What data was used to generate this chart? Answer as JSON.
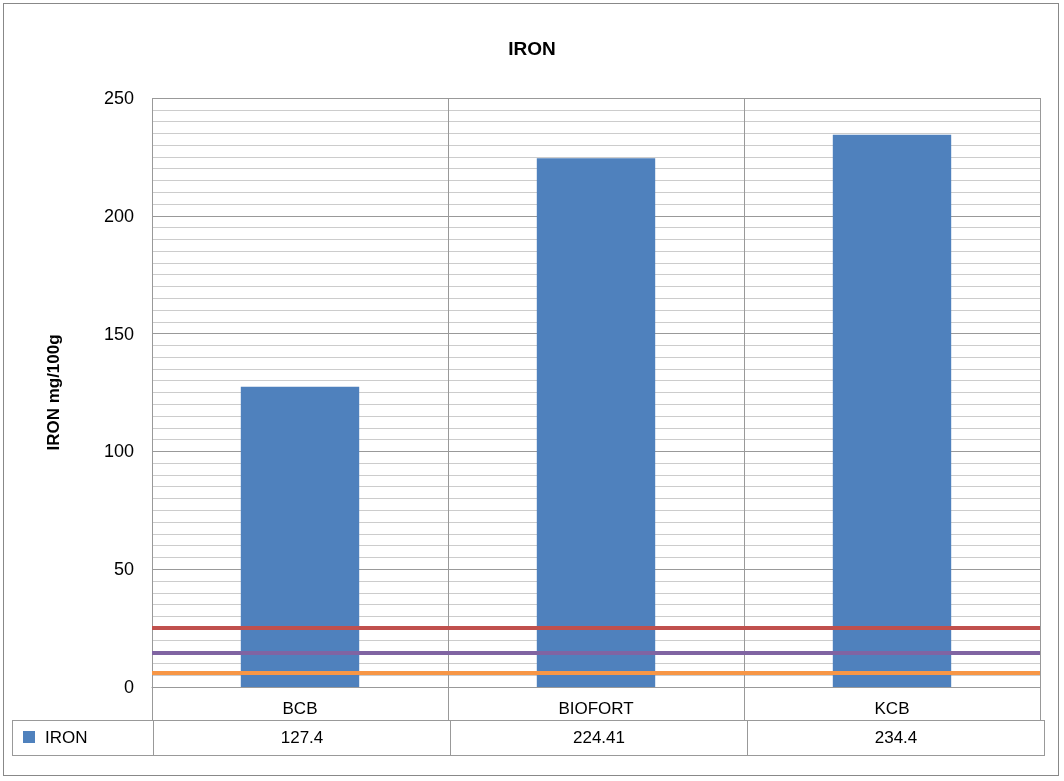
{
  "chart_data": {
    "type": "bar",
    "title": "IRON",
    "ylabel": "IRON mg/100g",
    "categories": [
      "BCB",
      "BIOFORT",
      "KCB"
    ],
    "series": [
      {
        "name": "IRON",
        "color": "#4f81bd",
        "values": [
          127.4,
          224.41,
          234.4
        ]
      }
    ],
    "ylim": [
      0,
      250
    ],
    "yticks": [
      0,
      50,
      100,
      150,
      200,
      250
    ],
    "grid": true,
    "legend": "bottom",
    "data_labels": true,
    "ref_lines": [
      {
        "axis": "y",
        "value": 25,
        "color": "#c0504d"
      },
      {
        "axis": "y",
        "value": 14.5,
        "color": "#8064a2"
      },
      {
        "axis": "y",
        "value": 6,
        "color": "#f79646"
      }
    ]
  }
}
